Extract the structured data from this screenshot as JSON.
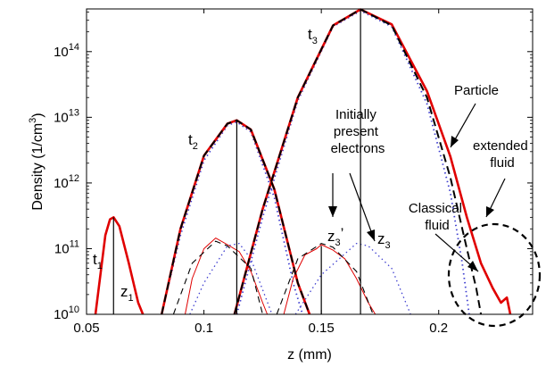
{
  "chart_data": {
    "type": "line",
    "title": "",
    "xlabel": "z (mm)",
    "ylabel": "Density (1/cm^3)",
    "ylabel_parts": {
      "base": "Density (1/cm",
      "sup": "3",
      "tail": ")"
    },
    "xlim": [
      0.05,
      0.24
    ],
    "ylim": [
      10000000000.0,
      500000000000000.0
    ],
    "yscale": "log",
    "grid": false,
    "legend": "none",
    "x_ticks": [
      {
        "value": 0.05,
        "label": "0.05"
      },
      {
        "value": 0.1,
        "label": "0.1"
      },
      {
        "value": 0.15,
        "label": "0.15"
      },
      {
        "value": 0.2,
        "label": "0.2"
      }
    ],
    "y_ticks": [
      {
        "value": 10000000000.0,
        "base": "10",
        "exp": "10"
      },
      {
        "value": 100000000000.0,
        "base": "10",
        "exp": "11"
      },
      {
        "value": 1000000000000.0,
        "base": "10",
        "exp": "12"
      },
      {
        "value": 10000000000000.0,
        "base": "10",
        "exp": "13"
      },
      {
        "value": 100000000000000.0,
        "base": "10",
        "exp": "14"
      }
    ],
    "series": [
      {
        "style": "particle",
        "color": "#e00000",
        "curves": [
          {
            "x": [
              0.0538,
              0.058,
              0.06,
              0.0615,
              0.064,
              0.068,
              0.072,
              0.074
            ],
            "y": [
              10000000000.0,
              160000000000.0,
              280000000000.0,
              300000000000.0,
              220000000000.0,
              60000000000.0,
              15000000000.0,
              10000000000.0
            ]
          },
          {
            "x": [
              0.082,
              0.09,
              0.1,
              0.11,
              0.114,
              0.12,
              0.13,
              0.14,
              0.145
            ],
            "y": [
              10000000000.0,
              200000000000.0,
              2600000000000.0,
              8000000000000.0,
              9000000000000.0,
              6500000000000.0,
              800000000000.0,
              30000000000.0,
              10000000000.0
            ]
          },
          {
            "x": [
              0.113,
              0.125,
              0.14,
              0.155,
              0.1667,
              0.18,
              0.195,
              0.205,
              0.212,
              0.218,
              0.223,
              0.2265,
              0.229,
              0.2305
            ],
            "y": [
              10000000000.0,
              400000000000.0,
              20000000000000.0,
              250000000000000.0,
              440000000000000.0,
              260000000000000.0,
              25000000000000.0,
              2500000000000.0,
              300000000000.0,
              60000000000.0,
              25000000000.0,
              15000000000.0,
              18000000000.0,
              10000000000.0
            ]
          }
        ]
      },
      {
        "style": "extended_fluid",
        "color": "#000000",
        "curves": [
          {
            "x": [
              0.082,
              0.09,
              0.1,
              0.11,
              0.114,
              0.12,
              0.13,
              0.14,
              0.145
            ],
            "y": [
              10000000000.0,
              200000000000.0,
              2600000000000.0,
              8000000000000.0,
              9000000000000.0,
              6500000000000.0,
              800000000000.0,
              30000000000.0,
              10000000000.0
            ]
          },
          {
            "x": [
              0.113,
              0.125,
              0.14,
              0.155,
              0.1667,
              0.18,
              0.195,
              0.205,
              0.212,
              0.216,
              0.218
            ],
            "y": [
              10000000000.0,
              400000000000.0,
              20000000000000.0,
              250000000000000.0,
              440000000000000.0,
              250000000000000.0,
              20000000000000.0,
              1200000000000.0,
              100000000000.0,
              25000000000.0,
              10000000000.0
            ]
          }
        ]
      },
      {
        "style": "classical_fluid",
        "color": "#4040d0",
        "curves": [
          {
            "x": [
              0.082,
              0.09,
              0.1,
              0.11,
              0.114,
              0.12,
              0.13,
              0.138,
              0.142
            ],
            "y": [
              10000000000.0,
              160000000000.0,
              2200000000000.0,
              7500000000000.0,
              8500000000000.0,
              6000000000000.0,
              600000000000.0,
              30000000000.0,
              10000000000.0
            ]
          },
          {
            "x": [
              0.114,
              0.125,
              0.14,
              0.155,
              0.1667,
              0.18,
              0.195,
              0.205,
              0.21,
              0.213
            ],
            "y": [
              10000000000.0,
              300000000000.0,
              18000000000000.0,
              240000000000000.0,
              420000000000000.0,
              240000000000000.0,
              16000000000000.0,
              700000000000.0,
              60000000000.0,
              10000000000.0
            ]
          }
        ]
      },
      {
        "style": "initial_particle",
        "color": "#e00000",
        "curves": [
          {
            "x": [
              0.092,
              0.095,
              0.1,
              0.105,
              0.11,
              0.115,
              0.12,
              0.125,
              0.127
            ],
            "y": [
              10000000000.0,
              35000000000.0,
              100000000000.0,
              145000000000.0,
              115000000000.0,
              90000000000.0,
              45000000000.0,
              15000000000.0,
              10000000000.0
            ]
          },
          {
            "x": [
              0.134,
              0.138,
              0.143,
              0.148,
              0.15,
              0.155,
              0.16,
              0.165,
              0.17,
              0.173
            ],
            "y": [
              10000000000.0,
              35000000000.0,
              80000000000.0,
              100000000000.0,
              115000000000.0,
              95000000000.0,
              70000000000.0,
              35000000000.0,
              15000000000.0,
              10000000000.0
            ]
          }
        ]
      },
      {
        "style": "initial_extended",
        "color": "#000000",
        "curves": [
          {
            "x": [
              0.087,
              0.095,
              0.105,
              0.11,
              0.12,
              0.125
            ],
            "y": [
              10000000000.0,
              60000000000.0,
              130000000000.0,
              110000000000.0,
              50000000000.0,
              10000000000.0
            ]
          },
          {
            "x": [
              0.131,
              0.14,
              0.15,
              0.155,
              0.165,
              0.172
            ],
            "y": [
              10000000000.0,
              70000000000.0,
              120000000000.0,
              105000000000.0,
              45000000000.0,
              10000000000.0
            ]
          }
        ]
      },
      {
        "style": "initial_classical",
        "color": "#4040d0",
        "curves": [
          {
            "x": [
              0.094,
              0.1,
              0.11,
              0.115,
              0.12,
              0.129
            ],
            "y": [
              10000000000.0,
              30000000000.0,
              110000000000.0,
              120000000000.0,
              70000000000.0,
              10000000000.0
            ]
          },
          {
            "x": [
              0.139,
              0.15,
              0.165,
              0.17,
              0.18,
              0.188
            ],
            "y": [
              10000000000.0,
              40000000000.0,
              120000000000.0,
              110000000000.0,
              50000000000.0,
              10000000000.0
            ]
          }
        ]
      }
    ],
    "markers": [
      {
        "x": 0.0615,
        "y_top": 300000000000.0
      },
      {
        "x": 0.114,
        "y_top": 9000000000000.0
      },
      {
        "x": 0.1667,
        "y_top": 440000000000000.0
      },
      {
        "x": 0.15,
        "y_top": 110000000000.0
      }
    ],
    "annotations": {
      "t1": {
        "base": "t",
        "sub": "1"
      },
      "t2": {
        "base": "t",
        "sub": "2"
      },
      "t3": {
        "base": "t",
        "sub": "3"
      },
      "z1": {
        "base": "z",
        "sub": "1"
      },
      "z3": {
        "base": "z",
        "sub": "3"
      },
      "z3p": {
        "base": "z",
        "sub": "3",
        "prime": "’"
      },
      "particle": "Particle",
      "extended_fluid": [
        "extended",
        "fluid"
      ],
      "classical_fluid": [
        "Classical",
        "fluid"
      ],
      "initial_electrons": [
        "Initially",
        "present",
        "electrons"
      ]
    }
  }
}
